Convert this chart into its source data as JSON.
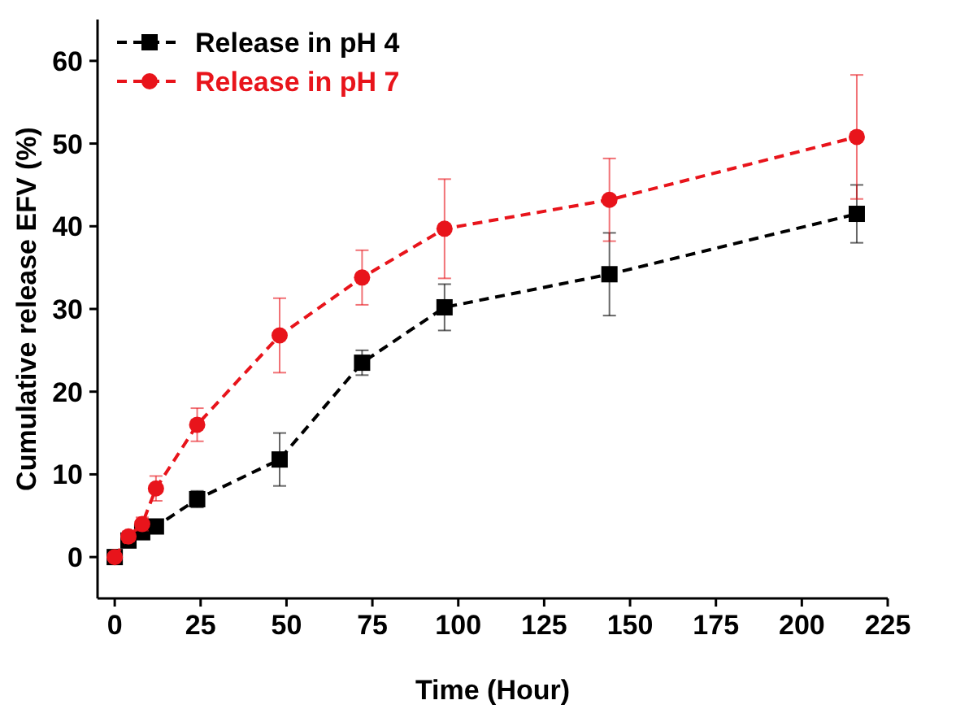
{
  "chart_data": {
    "type": "line",
    "xlabel": "Time (Hour)",
    "ylabel": "Cumulative release EFV (%)",
    "x": [
      0,
      4,
      8,
      12,
      24,
      48,
      72,
      96,
      144,
      216
    ],
    "series": [
      {
        "name": "Release in pH 4",
        "color": "#000000",
        "marker": "square",
        "values": [
          0,
          2,
          3,
          3.7,
          7,
          11.8,
          23.5,
          30.2,
          34.2,
          41.5
        ],
        "errors": [
          null,
          0.5,
          0.6,
          0.6,
          1,
          3.2,
          1.5,
          2.8,
          5,
          3.5
        ]
      },
      {
        "name": "Release in pH 7",
        "color": "#e8141b",
        "marker": "circle",
        "values": [
          0,
          2.5,
          4,
          8.3,
          16,
          26.8,
          33.8,
          39.7,
          43.2,
          50.8
        ],
        "errors": [
          null,
          0.6,
          0.8,
          1.5,
          2,
          4.5,
          3.3,
          6,
          5,
          7.5
        ]
      }
    ],
    "xlim": [
      -5,
      225
    ],
    "xticks": [
      0,
      25,
      50,
      75,
      100,
      125,
      150,
      175,
      200,
      225
    ],
    "ylim": [
      -5,
      65
    ],
    "yticks": [
      0,
      10,
      20,
      30,
      40,
      50,
      60
    ],
    "line_style": "dashed",
    "legend": "top left",
    "grid": false
  }
}
